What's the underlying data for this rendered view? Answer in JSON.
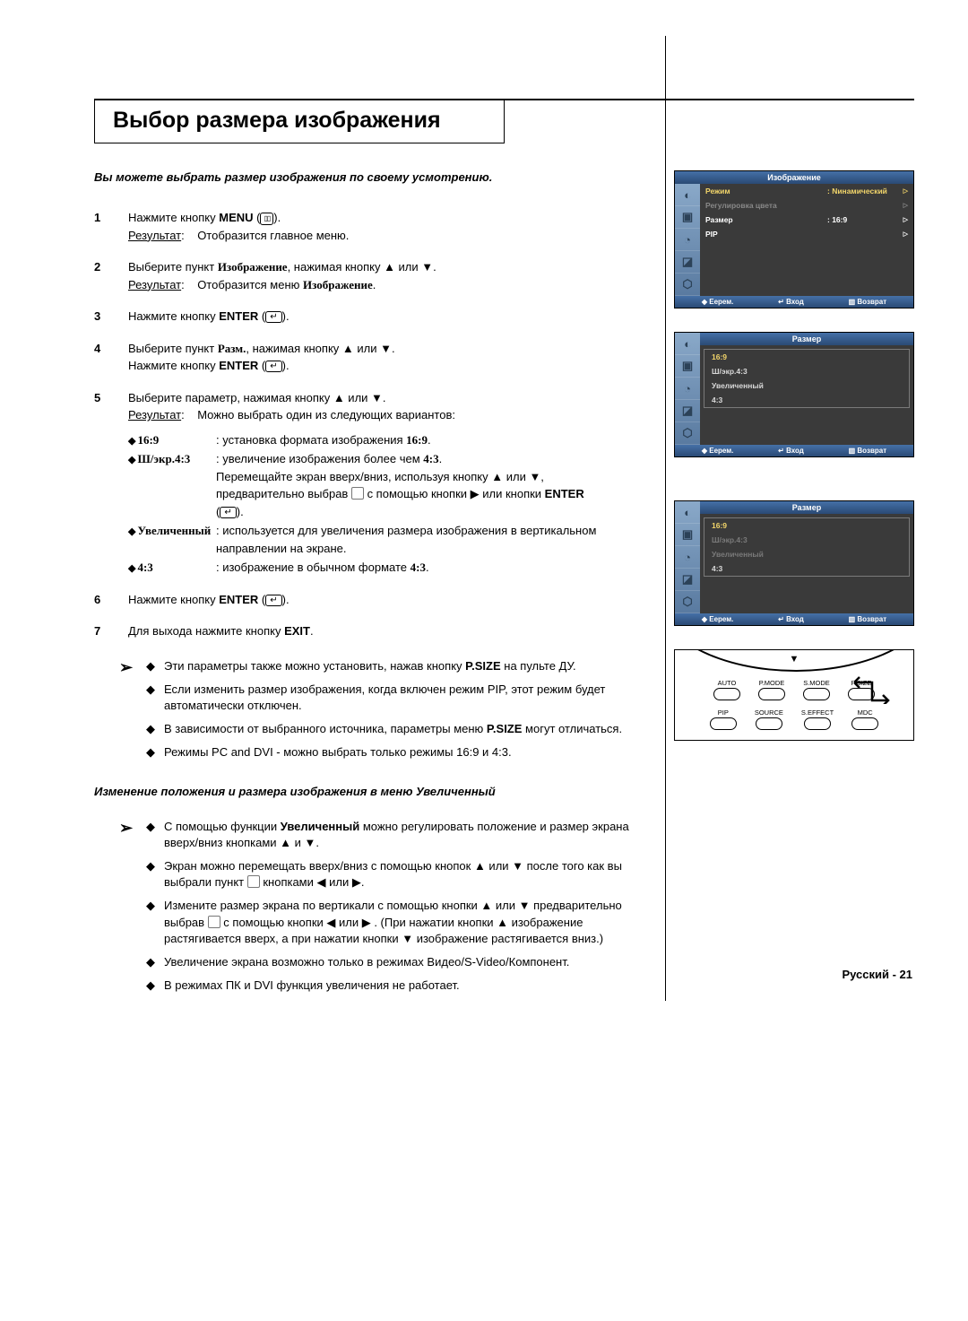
{
  "title": "Выбор размера изображения",
  "intro": "Вы можете выбрать размер изображения по своему усмотрению.",
  "steps": {
    "s1_a": "Нажмите кнопку ",
    "s1_menu": "MENU",
    "s1_result_label": "Результат",
    "s1_result_text": "Отобразится главное меню.",
    "s2_a": "Выберите пункт ",
    "s2_word": "Изображение",
    "s2_b": ", нажимая кнопку ▲ или ▼.",
    "s2_result_label": "Результат",
    "s2_result_text_a": "Отобразится меню ",
    "s2_result_text_b": "Изображение",
    "s3_a": "Нажмите кнопку ",
    "s3_enter": "ENTER",
    "s4_a": "Выберите пункт ",
    "s4_word": "Разм.",
    "s4_b": ", нажимая кнопку ▲ или ▼.",
    "s4_c": "Нажмите кнопку ",
    "s4_enter": "ENTER",
    "s5_a": "Выберите параметр, нажимая кнопку ▲ или ▼.",
    "s5_result_label": "Результат",
    "s5_result_text": "Можно выбрать один из следующих вариантов:",
    "opt1_label": "16:9",
    "opt1_text_a": ": установка формата изображения ",
    "opt1_text_b": "16:9",
    "opt2_label": "Ш/экр.4:3",
    "opt2_text_a": ": увеличение изображения более чем ",
    "opt2_text_b": "4:3",
    "opt2_text_c": "Перемещайте экран вверх/вниз, используя кнопку ▲ или ▼, предварительно выбрав ",
    "opt2_text_d": " с помощью кнопки ▶ или кнопки ",
    "opt2_enter": "ENTER",
    "opt3_label": "Увеличенный",
    "opt3_text": ": используется для увеличения размера изображения в вертикальном направлении на экране.",
    "opt4_label": "4:3",
    "opt4_text_a": ": изображение в обычном формате ",
    "opt4_text_b": "4:3",
    "s6_a": "Нажмите кнопку ",
    "s6_enter": "ENTER",
    "s7_a": "Для выхода нажмите кнопку ",
    "s7_exit": "EXIT"
  },
  "notes1": {
    "n1_a": "Эти параметры также можно установить, нажав кнопку ",
    "n1_b": "P.SIZE",
    "n1_c": " на пульте ДУ.",
    "n2": "Если изменить размер изображения, когда включен режим PIP, этот режим будет автоматически отключен.",
    "n3_a": "В зависимости от выбранного источника, параметры меню ",
    "n3_b": "P.SIZE",
    "n3_c": " могут отличаться.",
    "n4": "Режимы PC and DVI - можно выбрать только режимы 16:9 и 4:3."
  },
  "subsection": "Изменение положения и размера изображения в меню Увеличенный",
  "notes2": {
    "n1_a": "С помощью функции ",
    "n1_b": "Увеличенный",
    "n1_c": " можно регулировать положение и размер экрана вверх/вниз кнопками ▲ и ▼.",
    "n2": "Экран можно перемещать вверх/вниз с помощью кнопок ▲ или ▼ после того как вы выбрали пункт ",
    "n2_b": " кнопками ◀ или ▶.",
    "n3_a": "Измените размер экрана по вертикали с помощью кнопки ▲ или ▼ предварительно выбрав ",
    "n3_b": " с помощью кнопки ◀ или ▶ . (При нажатии кнопки ▲ изображение растягивается вверх, а при нажатии кнопки ▼ изображение растягивается вниз.)",
    "n4": "Увеличение экрана возможно только в режимах Видео/S-Video/Компонент.",
    "n5": "В режимах ПК и DVI функция увеличения не работает."
  },
  "osd1": {
    "title": "Изображение",
    "rows": [
      {
        "label": "Режим",
        "value": ": Nинамический",
        "sel": true
      },
      {
        "label": "Регулировка цвета",
        "value": "",
        "disabled": true
      },
      {
        "label": "Размер",
        "value": ": 16:9"
      },
      {
        "label": "PIP",
        "value": ""
      }
    ],
    "foot": {
      "a": "Еерем.",
      "b": "Вход",
      "c": "Возврат"
    }
  },
  "osd2": {
    "title": "Размер",
    "items": [
      {
        "label": "16:9",
        "sel": true
      },
      {
        "label": "Ш/экр.4:3"
      },
      {
        "label": "Увеличенный"
      },
      {
        "label": "4:3"
      }
    ],
    "foot": {
      "a": "Еерем.",
      "b": "Вход",
      "c": "Возврат"
    }
  },
  "osd3": {
    "title": "Размер",
    "items": [
      {
        "label": "16:9",
        "sel": true
      },
      {
        "label": "Ш/экр.4:3",
        "disabled": true
      },
      {
        "label": "Увеличенный",
        "disabled": true
      },
      {
        "label": "4:3"
      }
    ],
    "foot": {
      "a": "Еерем.",
      "b": "Вход",
      "c": "Возврат"
    }
  },
  "remote": {
    "row1": [
      "AUTO",
      "P.MODE",
      "S.MODE",
      "P.SIZE"
    ],
    "row2": [
      "PIP",
      "SOURCE",
      "S.EFFECT",
      "MDC"
    ]
  },
  "footer": {
    "lang": "Русский",
    "page": "21"
  },
  "icons": [
    "◐",
    "▣",
    "◔",
    "◪",
    "⬡"
  ]
}
